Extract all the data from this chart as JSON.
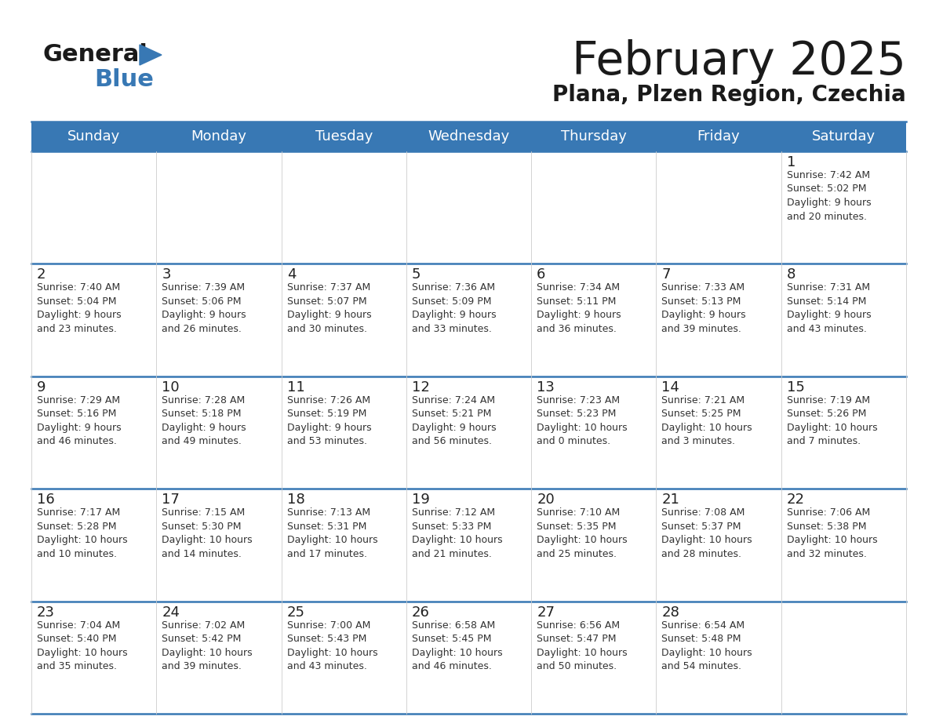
{
  "title": "February 2025",
  "subtitle": "Plana, Plzen Region, Czechia",
  "header_color": "#3878b4",
  "header_text_color": "#ffffff",
  "day_number_color": "#222222",
  "info_text_color": "#333333",
  "border_color": "#3878b4",
  "cell_bg_white": "#ffffff",
  "cell_bg_gray": "#eeeeee",
  "days_of_week": [
    "Sunday",
    "Monday",
    "Tuesday",
    "Wednesday",
    "Thursday",
    "Friday",
    "Saturday"
  ],
  "weeks": [
    [
      {
        "day": null,
        "info": null
      },
      {
        "day": null,
        "info": null
      },
      {
        "day": null,
        "info": null
      },
      {
        "day": null,
        "info": null
      },
      {
        "day": null,
        "info": null
      },
      {
        "day": null,
        "info": null
      },
      {
        "day": 1,
        "info": "Sunrise: 7:42 AM\nSunset: 5:02 PM\nDaylight: 9 hours\nand 20 minutes."
      }
    ],
    [
      {
        "day": 2,
        "info": "Sunrise: 7:40 AM\nSunset: 5:04 PM\nDaylight: 9 hours\nand 23 minutes."
      },
      {
        "day": 3,
        "info": "Sunrise: 7:39 AM\nSunset: 5:06 PM\nDaylight: 9 hours\nand 26 minutes."
      },
      {
        "day": 4,
        "info": "Sunrise: 7:37 AM\nSunset: 5:07 PM\nDaylight: 9 hours\nand 30 minutes."
      },
      {
        "day": 5,
        "info": "Sunrise: 7:36 AM\nSunset: 5:09 PM\nDaylight: 9 hours\nand 33 minutes."
      },
      {
        "day": 6,
        "info": "Sunrise: 7:34 AM\nSunset: 5:11 PM\nDaylight: 9 hours\nand 36 minutes."
      },
      {
        "day": 7,
        "info": "Sunrise: 7:33 AM\nSunset: 5:13 PM\nDaylight: 9 hours\nand 39 minutes."
      },
      {
        "day": 8,
        "info": "Sunrise: 7:31 AM\nSunset: 5:14 PM\nDaylight: 9 hours\nand 43 minutes."
      }
    ],
    [
      {
        "day": 9,
        "info": "Sunrise: 7:29 AM\nSunset: 5:16 PM\nDaylight: 9 hours\nand 46 minutes."
      },
      {
        "day": 10,
        "info": "Sunrise: 7:28 AM\nSunset: 5:18 PM\nDaylight: 9 hours\nand 49 minutes."
      },
      {
        "day": 11,
        "info": "Sunrise: 7:26 AM\nSunset: 5:19 PM\nDaylight: 9 hours\nand 53 minutes."
      },
      {
        "day": 12,
        "info": "Sunrise: 7:24 AM\nSunset: 5:21 PM\nDaylight: 9 hours\nand 56 minutes."
      },
      {
        "day": 13,
        "info": "Sunrise: 7:23 AM\nSunset: 5:23 PM\nDaylight: 10 hours\nand 0 minutes."
      },
      {
        "day": 14,
        "info": "Sunrise: 7:21 AM\nSunset: 5:25 PM\nDaylight: 10 hours\nand 3 minutes."
      },
      {
        "day": 15,
        "info": "Sunrise: 7:19 AM\nSunset: 5:26 PM\nDaylight: 10 hours\nand 7 minutes."
      }
    ],
    [
      {
        "day": 16,
        "info": "Sunrise: 7:17 AM\nSunset: 5:28 PM\nDaylight: 10 hours\nand 10 minutes."
      },
      {
        "day": 17,
        "info": "Sunrise: 7:15 AM\nSunset: 5:30 PM\nDaylight: 10 hours\nand 14 minutes."
      },
      {
        "day": 18,
        "info": "Sunrise: 7:13 AM\nSunset: 5:31 PM\nDaylight: 10 hours\nand 17 minutes."
      },
      {
        "day": 19,
        "info": "Sunrise: 7:12 AM\nSunset: 5:33 PM\nDaylight: 10 hours\nand 21 minutes."
      },
      {
        "day": 20,
        "info": "Sunrise: 7:10 AM\nSunset: 5:35 PM\nDaylight: 10 hours\nand 25 minutes."
      },
      {
        "day": 21,
        "info": "Sunrise: 7:08 AM\nSunset: 5:37 PM\nDaylight: 10 hours\nand 28 minutes."
      },
      {
        "day": 22,
        "info": "Sunrise: 7:06 AM\nSunset: 5:38 PM\nDaylight: 10 hours\nand 32 minutes."
      }
    ],
    [
      {
        "day": 23,
        "info": "Sunrise: 7:04 AM\nSunset: 5:40 PM\nDaylight: 10 hours\nand 35 minutes."
      },
      {
        "day": 24,
        "info": "Sunrise: 7:02 AM\nSunset: 5:42 PM\nDaylight: 10 hours\nand 39 minutes."
      },
      {
        "day": 25,
        "info": "Sunrise: 7:00 AM\nSunset: 5:43 PM\nDaylight: 10 hours\nand 43 minutes."
      },
      {
        "day": 26,
        "info": "Sunrise: 6:58 AM\nSunset: 5:45 PM\nDaylight: 10 hours\nand 46 minutes."
      },
      {
        "day": 27,
        "info": "Sunrise: 6:56 AM\nSunset: 5:47 PM\nDaylight: 10 hours\nand 50 minutes."
      },
      {
        "day": 28,
        "info": "Sunrise: 6:54 AM\nSunset: 5:48 PM\nDaylight: 10 hours\nand 54 minutes."
      },
      {
        "day": null,
        "info": null
      }
    ]
  ]
}
